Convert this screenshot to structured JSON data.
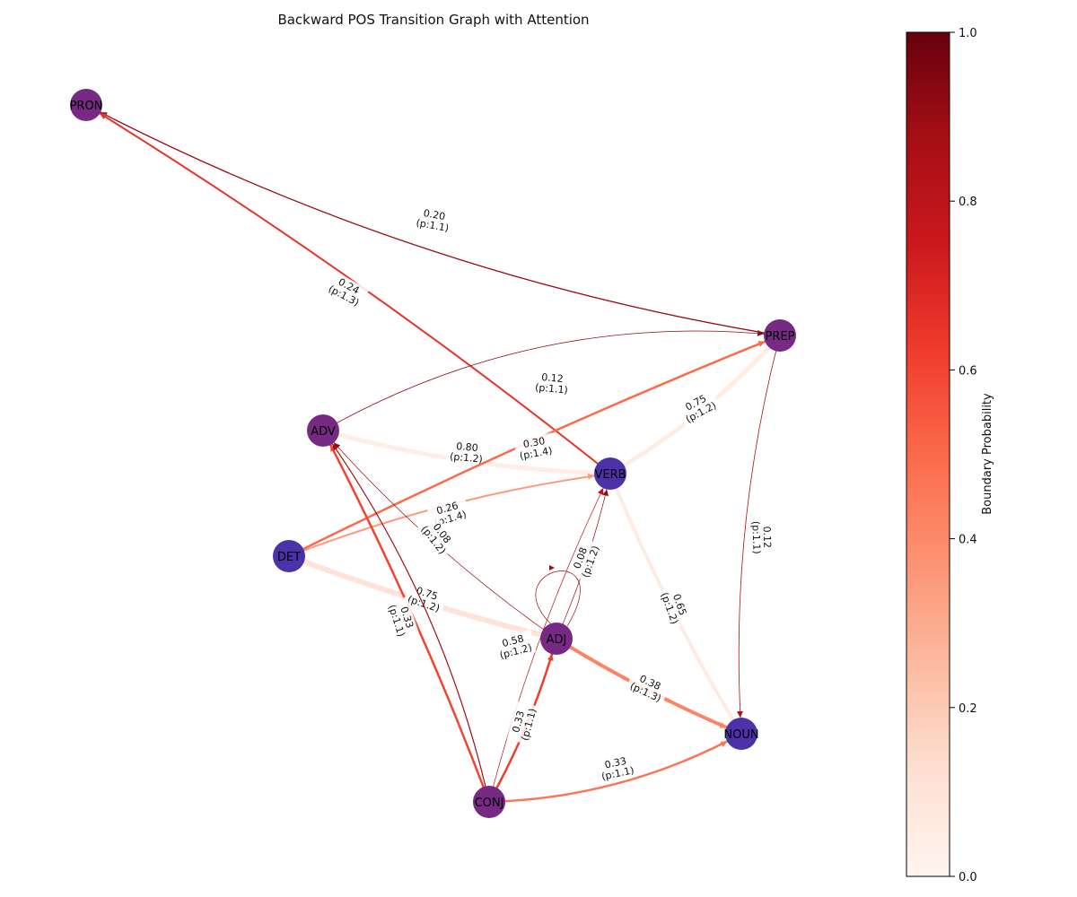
{
  "title": "Backward POS Transition Graph with Attention",
  "colorbar": {
    "label": "Boundary Probability",
    "colormap": "Reds",
    "ticks": [
      "0.0",
      "0.2",
      "0.4",
      "0.6",
      "0.8",
      "1.0"
    ],
    "colors": [
      "#fff5f0",
      "#fcbea5",
      "#fb7050",
      "#d32020",
      "#67000d"
    ]
  },
  "node_colors": {
    "purple": "#762a83",
    "indigo": "#4b32a8"
  },
  "nodes": [
    {
      "id": "PRON",
      "label": "PRON",
      "color": "purple"
    },
    {
      "id": "PREP",
      "label": "PREP",
      "color": "purple"
    },
    {
      "id": "ADV",
      "label": "ADV",
      "color": "purple"
    },
    {
      "id": "VERB",
      "label": "VERB",
      "color": "indigo"
    },
    {
      "id": "DET",
      "label": "DET",
      "color": "indigo"
    },
    {
      "id": "ADJ",
      "label": "ADJ",
      "color": "purple"
    },
    {
      "id": "NOUN",
      "label": "NOUN",
      "color": "indigo"
    },
    {
      "id": "CONJ",
      "label": "CONJ",
      "color": "purple"
    }
  ],
  "edges": [
    {
      "source": "PREP",
      "target": "PRON",
      "label": [
        "0.20",
        "(p:1.1)"
      ],
      "prob": 0.9
    },
    {
      "source": "VERB",
      "target": "PRON",
      "label": [
        "0.24",
        "(p:1.3)"
      ],
      "prob": 0.65
    },
    {
      "source": "ADV",
      "target": "PREP",
      "label": [
        "0.12",
        "(p:1.1)"
      ],
      "prob": 0.92
    },
    {
      "source": "VERB",
      "target": "PREP",
      "label": [
        "0.75",
        "(p:1.2)"
      ],
      "prob": 0.05
    },
    {
      "source": "ADV",
      "target": "VERB",
      "label": [
        "0.80",
        "(p:1.2)"
      ],
      "prob": 0.04
    },
    {
      "source": "DET",
      "target": "PREP",
      "label": [
        "0.30",
        "(p:1.4)"
      ],
      "prob": 0.5
    },
    {
      "source": "DET",
      "target": "VERB",
      "label": [
        "0.26",
        "(p:1.4)"
      ],
      "prob": 0.35
    },
    {
      "source": "ADJ",
      "target": "ADV",
      "label": [
        "0.08",
        "(p:1.2)"
      ],
      "prob": 0.92
    },
    {
      "source": "DET",
      "target": "ADJ",
      "label": [
        "0.75",
        "(p:1.2)"
      ],
      "prob": 0.1
    },
    {
      "source": "CONJ",
      "target": "ADV",
      "label": [
        "0.75",
        "(p:1.2)"
      ],
      "prob": 0.6
    },
    {
      "source": "CONJ",
      "target": "ADV",
      "label": [
        "0.33",
        "(p:1.1)"
      ],
      "prob": 0.88
    },
    {
      "source": "ADJ",
      "target": "VERB",
      "label": [
        "0.08",
        "(p:1.2)"
      ],
      "prob": 0.9
    },
    {
      "source": "ADJ",
      "target": "ADJ",
      "label": [
        "",
        ""
      ],
      "prob": 0.9
    },
    {
      "source": "VERB",
      "target": "NOUN",
      "label": [
        "0.65",
        "(p:1.2)"
      ],
      "prob": 0.06
    },
    {
      "source": "PREP",
      "target": "NOUN",
      "label": [
        "0.12",
        "(p:1.1)"
      ],
      "prob": 0.85
    },
    {
      "source": "CONJ",
      "target": "VERB",
      "label": [
        "0.58",
        "(p:1.2)"
      ],
      "prob": 0.82
    },
    {
      "source": "ADJ",
      "target": "NOUN",
      "label": [
        "0.38",
        "(p:1.3)"
      ],
      "prob": 0.42
    },
    {
      "source": "CONJ",
      "target": "ADJ",
      "label": [
        "0.33",
        "(p:1.1)"
      ],
      "prob": 0.62
    },
    {
      "source": "CONJ",
      "target": "NOUN",
      "label": [
        "0.33",
        "(p:1.1)"
      ],
      "prob": 0.47
    }
  ]
}
